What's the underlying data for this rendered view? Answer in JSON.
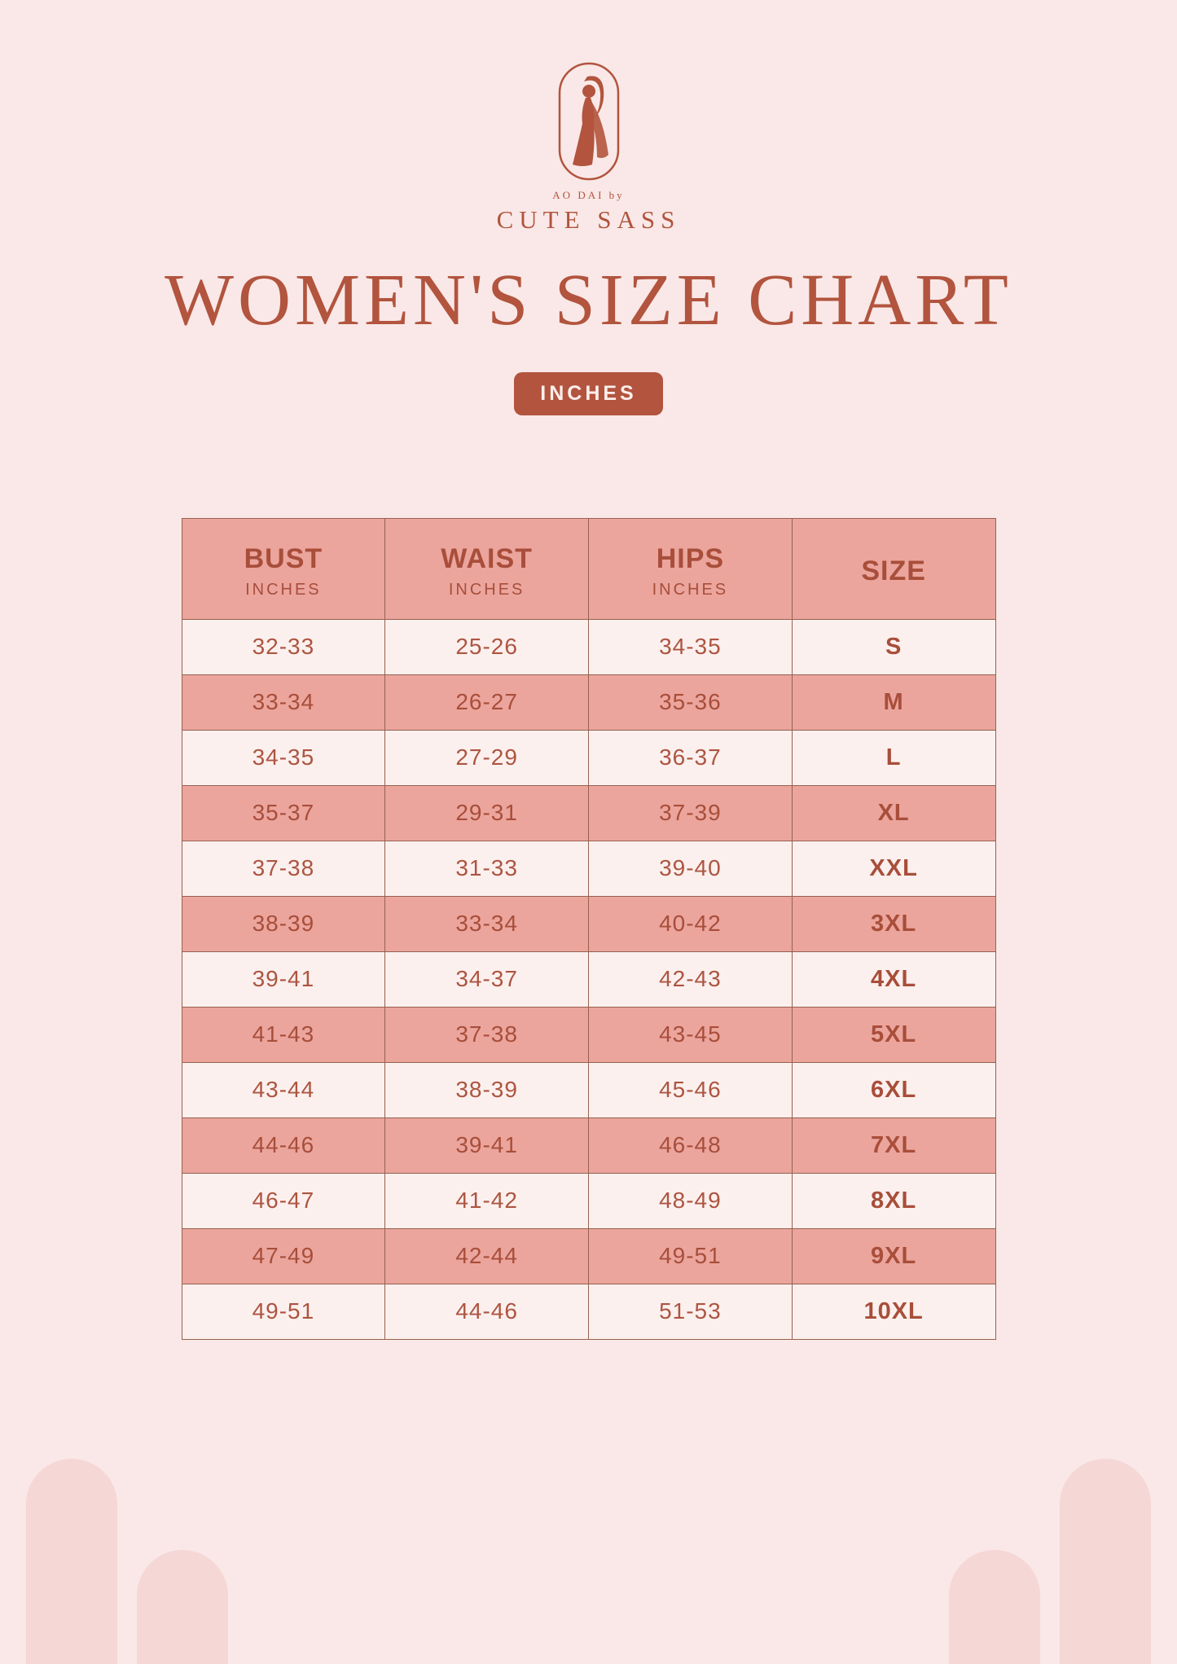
{
  "colors": {
    "background": "#f9e8e7",
    "accent_rust": "#b2543e",
    "salmon_row": "#eba59d",
    "light_row": "#fbf0ee",
    "arch_pink": "#f5d7d5",
    "badge_text": "#fbeeec"
  },
  "brand": {
    "logo_icon": "woman-in-ao-dai-oval",
    "tagline": "AO DAI by",
    "name": "CUTE SASS"
  },
  "title": "WOMEN'S SIZE CHART",
  "unit_badge": "INCHES",
  "chart_data": {
    "type": "table",
    "columns": [
      {
        "label": "BUST",
        "sublabel": "INCHES"
      },
      {
        "label": "WAIST",
        "sublabel": "INCHES"
      },
      {
        "label": "HIPS",
        "sublabel": "INCHES"
      },
      {
        "label": "SIZE",
        "sublabel": ""
      }
    ],
    "rows": [
      [
        "32-33",
        "25-26",
        "34-35",
        "S"
      ],
      [
        "33-34",
        "26-27",
        "35-36",
        "M"
      ],
      [
        "34-35",
        "27-29",
        "36-37",
        "L"
      ],
      [
        "35-37",
        "29-31",
        "37-39",
        "XL"
      ],
      [
        "37-38",
        "31-33",
        "39-40",
        "XXL"
      ],
      [
        "38-39",
        "33-34",
        "40-42",
        "3XL"
      ],
      [
        "39-41",
        "34-37",
        "42-43",
        "4XL"
      ],
      [
        "41-43",
        "37-38",
        "43-45",
        "5XL"
      ],
      [
        "43-44",
        "38-39",
        "45-46",
        "6XL"
      ],
      [
        "44-46",
        "39-41",
        "46-48",
        "7XL"
      ],
      [
        "46-47",
        "41-42",
        "48-49",
        "8XL"
      ],
      [
        "47-49",
        "42-44",
        "49-51",
        "9XL"
      ],
      [
        "49-51",
        "44-46",
        "51-53",
        "10XL"
      ]
    ]
  }
}
